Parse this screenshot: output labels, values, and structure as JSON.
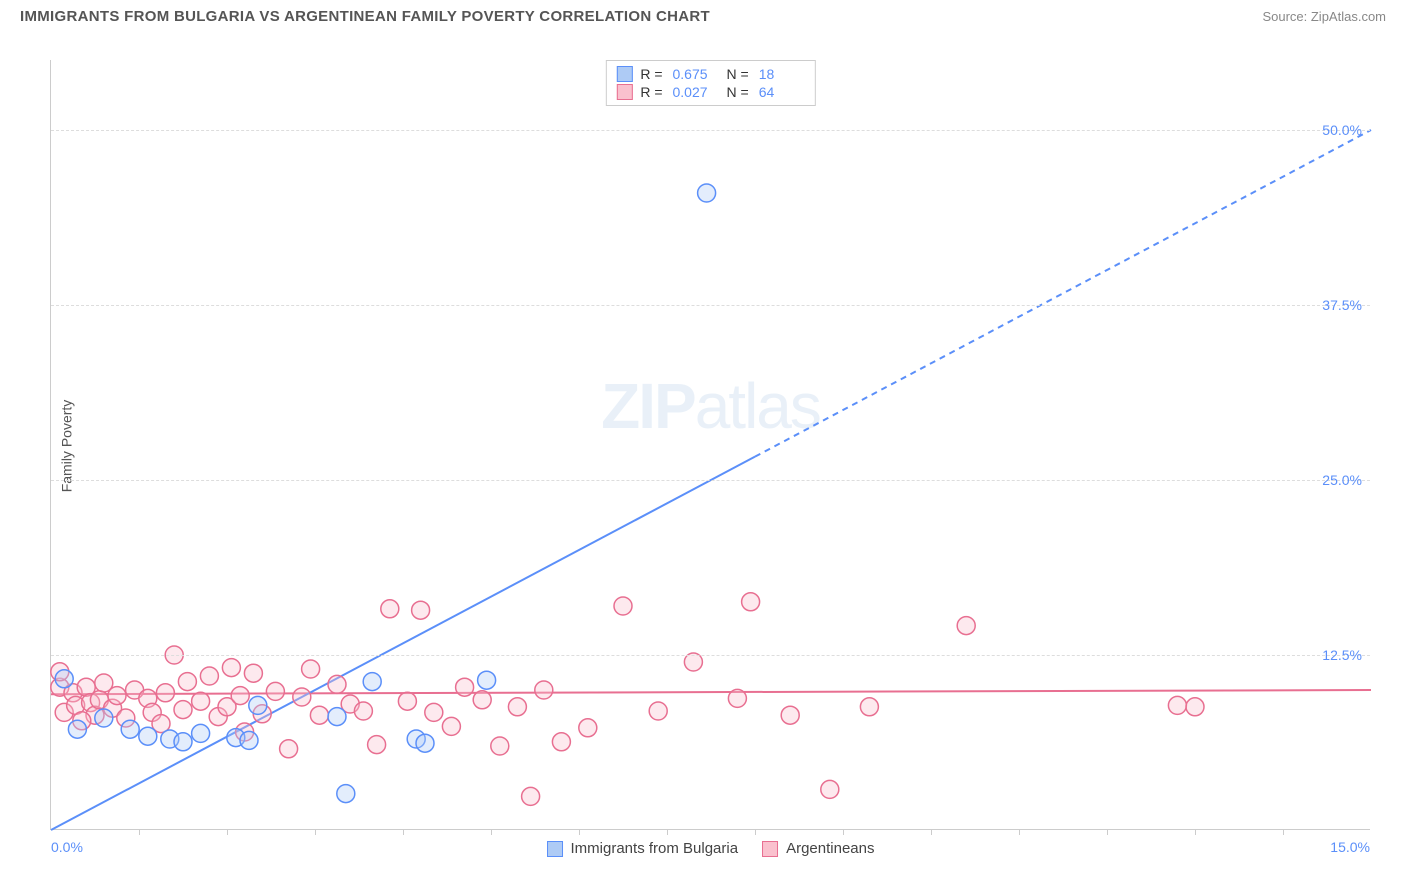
{
  "header": {
    "title": "IMMIGRANTS FROM BULGARIA VS ARGENTINEAN FAMILY POVERTY CORRELATION CHART",
    "source": "Source: ZipAtlas.com"
  },
  "ylabel": "Family Poverty",
  "watermark": {
    "strong": "ZIP",
    "rest": "atlas"
  },
  "chart": {
    "type": "scatter-with-regression",
    "background_color": "#ffffff",
    "grid_color": "#dddddd",
    "axis_color": "#cccccc",
    "tick_label_color": "#5b8ff9",
    "label_fontsize": 14,
    "xlim": [
      0,
      15
    ],
    "ylim": [
      0,
      55
    ],
    "yticks": [
      12.5,
      25.0,
      37.5,
      50.0
    ],
    "ytick_labels": [
      "12.5%",
      "25.0%",
      "37.5%",
      "50.0%"
    ],
    "xmin_label": "0.0%",
    "xmax_label": "15.0%",
    "xtick_positions": [
      1.0,
      2.0,
      3.0,
      4.0,
      5.0,
      6.0,
      7.0,
      8.0,
      9.0,
      10.0,
      11.0,
      12.0,
      13.0,
      14.0
    ],
    "marker_radius": 9,
    "marker_stroke_width": 1.5,
    "marker_fill_opacity": 0.35,
    "trend_line_width": 2,
    "series": [
      {
        "name": "Immigrants from Bulgaria",
        "color_fill": "#aecbf5",
        "color_stroke": "#5b8ff9",
        "R": "0.675",
        "N": "18",
        "trend": {
          "slope": 3.3333,
          "intercept": 0.0,
          "dash_from_x": 8.0
        },
        "points": [
          [
            0.15,
            10.8
          ],
          [
            0.3,
            7.2
          ],
          [
            0.6,
            8.0
          ],
          [
            0.9,
            7.2
          ],
          [
            1.1,
            6.7
          ],
          [
            1.35,
            6.5
          ],
          [
            1.5,
            6.3
          ],
          [
            1.7,
            6.9
          ],
          [
            2.1,
            6.6
          ],
          [
            2.25,
            6.4
          ],
          [
            2.35,
            8.9
          ],
          [
            3.25,
            8.1
          ],
          [
            3.35,
            2.6
          ],
          [
            3.65,
            10.6
          ],
          [
            4.15,
            6.5
          ],
          [
            4.25,
            6.2
          ],
          [
            4.95,
            10.7
          ],
          [
            7.45,
            45.5
          ]
        ]
      },
      {
        "name": "Argentineans",
        "color_fill": "#fac1ce",
        "color_stroke": "#e86f91",
        "R": "0.027",
        "N": "64",
        "trend": {
          "slope": 0.02,
          "intercept": 9.7,
          "dash_from_x": null
        },
        "points": [
          [
            0.1,
            10.2
          ],
          [
            0.1,
            11.3
          ],
          [
            0.15,
            8.4
          ],
          [
            0.25,
            9.8
          ],
          [
            0.28,
            8.9
          ],
          [
            0.4,
            10.2
          ],
          [
            0.45,
            9.1
          ],
          [
            0.5,
            8.2
          ],
          [
            0.55,
            9.3
          ],
          [
            0.6,
            10.5
          ],
          [
            0.7,
            8.7
          ],
          [
            0.75,
            9.6
          ],
          [
            0.85,
            8.0
          ],
          [
            0.95,
            10.0
          ],
          [
            1.1,
            9.4
          ],
          [
            1.15,
            8.4
          ],
          [
            1.3,
            9.8
          ],
          [
            1.4,
            12.5
          ],
          [
            1.5,
            8.6
          ],
          [
            1.55,
            10.6
          ],
          [
            1.7,
            9.2
          ],
          [
            1.8,
            11.0
          ],
          [
            1.9,
            8.1
          ],
          [
            2.0,
            8.8
          ],
          [
            2.05,
            11.6
          ],
          [
            2.15,
            9.6
          ],
          [
            2.3,
            11.2
          ],
          [
            2.4,
            8.3
          ],
          [
            2.55,
            9.9
          ],
          [
            2.7,
            5.8
          ],
          [
            2.85,
            9.5
          ],
          [
            2.95,
            11.5
          ],
          [
            3.05,
            8.2
          ],
          [
            3.25,
            10.4
          ],
          [
            3.4,
            9.0
          ],
          [
            3.55,
            8.5
          ],
          [
            3.7,
            6.1
          ],
          [
            3.85,
            15.8
          ],
          [
            4.05,
            9.2
          ],
          [
            4.2,
            15.7
          ],
          [
            4.35,
            8.4
          ],
          [
            4.55,
            7.4
          ],
          [
            4.7,
            10.2
          ],
          [
            4.9,
            9.3
          ],
          [
            5.1,
            6.0
          ],
          [
            5.3,
            8.8
          ],
          [
            5.45,
            2.4
          ],
          [
            5.6,
            10.0
          ],
          [
            5.8,
            6.3
          ],
          [
            6.1,
            7.3
          ],
          [
            6.5,
            16.0
          ],
          [
            6.9,
            8.5
          ],
          [
            7.3,
            12.0
          ],
          [
            7.8,
            9.4
          ],
          [
            7.95,
            16.3
          ],
          [
            8.4,
            8.2
          ],
          [
            8.85,
            2.9
          ],
          [
            9.3,
            8.8
          ],
          [
            10.4,
            14.6
          ],
          [
            12.8,
            8.9
          ],
          [
            13.0,
            8.8
          ],
          [
            2.2,
            7.0
          ],
          [
            1.25,
            7.6
          ],
          [
            0.35,
            7.8
          ]
        ]
      }
    ]
  },
  "legend_top": {
    "r_label": "R =",
    "n_label": "N ="
  },
  "legend_bottom": {
    "items": [
      "Immigrants from Bulgaria",
      "Argentineans"
    ]
  }
}
